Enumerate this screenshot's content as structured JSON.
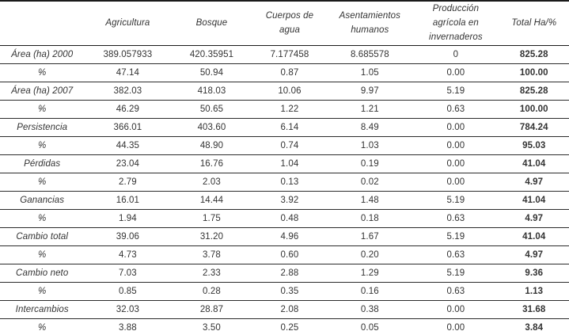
{
  "table": {
    "corner_label": "",
    "columns": [
      "Agricultura",
      "Bosque",
      "Cuerpos de agua",
      "Asentamientos humanos",
      "Producción agrícola en invernaderos",
      "Total Ha/%"
    ],
    "rows": [
      {
        "label": "Área (ha) 2000",
        "values": [
          "389.057933",
          "420.35951",
          "7.177458",
          "8.685578",
          "0",
          "825.28"
        ]
      },
      {
        "label": "%",
        "values": [
          "47.14",
          "50.94",
          "0.87",
          "1.05",
          "0.00",
          "100.00"
        ]
      },
      {
        "label": "Área (ha) 2007",
        "values": [
          "382.03",
          "418.03",
          "10.06",
          "9.97",
          "5.19",
          "825.28"
        ]
      },
      {
        "label": "%",
        "values": [
          "46.29",
          "50.65",
          "1.22",
          "1.21",
          "0.63",
          "100.00"
        ]
      },
      {
        "label": "Persistencia",
        "values": [
          "366.01",
          "403.60",
          "6.14",
          "8.49",
          "0.00",
          "784.24"
        ]
      },
      {
        "label": "%",
        "values": [
          "44.35",
          "48.90",
          "0.74",
          "1.03",
          "0.00",
          "95.03"
        ]
      },
      {
        "label": "Pérdidas",
        "values": [
          "23.04",
          "16.76",
          "1.04",
          "0.19",
          "0.00",
          "41.04"
        ]
      },
      {
        "label": "%",
        "values": [
          "2.79",
          "2.03",
          "0.13",
          "0.02",
          "0.00",
          "4.97"
        ]
      },
      {
        "label": "Ganancias",
        "values": [
          "16.01",
          "14.44",
          "3.92",
          "1.48",
          "5.19",
          "41.04"
        ]
      },
      {
        "label": "%",
        "values": [
          "1.94",
          "1.75",
          "0.48",
          "0.18",
          "0.63",
          "4.97"
        ]
      },
      {
        "label": "Cambio total",
        "values": [
          "39.06",
          "31.20",
          "4.96",
          "1.67",
          "5.19",
          "41.04"
        ]
      },
      {
        "label": "%",
        "values": [
          "4.73",
          "3.78",
          "0.60",
          "0.20",
          "0.63",
          "4.97"
        ]
      },
      {
        "label": "Cambio neto",
        "values": [
          "7.03",
          "2.33",
          "2.88",
          "1.29",
          "5.19",
          "9.36"
        ]
      },
      {
        "label": "%",
        "values": [
          "0.85",
          "0.28",
          "0.35",
          "0.16",
          "0.63",
          "1.13"
        ]
      },
      {
        "label": "Intercambios",
        "values": [
          "32.03",
          "28.87",
          "2.08",
          "0.38",
          "0.00",
          "31.68"
        ]
      },
      {
        "label": "%",
        "values": [
          "3.88",
          "3.50",
          "0.25",
          "0.05",
          "0.00",
          "3.84"
        ]
      }
    ]
  },
  "chart_data": {
    "type": "table",
    "title": "",
    "categories": [
      "Agricultura",
      "Bosque",
      "Cuerpos de agua",
      "Asentamientos humanos",
      "Producción agrícola en invernaderos",
      "Total Ha/%"
    ],
    "series": [
      {
        "name": "Área (ha) 2000",
        "values": [
          389.057933,
          420.35951,
          7.177458,
          8.685578,
          0,
          825.28
        ]
      },
      {
        "name": "% (2000)",
        "values": [
          47.14,
          50.94,
          0.87,
          1.05,
          0.0,
          100.0
        ]
      },
      {
        "name": "Área (ha) 2007",
        "values": [
          382.03,
          418.03,
          10.06,
          9.97,
          5.19,
          825.28
        ]
      },
      {
        "name": "% (2007)",
        "values": [
          46.29,
          50.65,
          1.22,
          1.21,
          0.63,
          100.0
        ]
      },
      {
        "name": "Persistencia",
        "values": [
          366.01,
          403.6,
          6.14,
          8.49,
          0.0,
          784.24
        ]
      },
      {
        "name": "% (Persistencia)",
        "values": [
          44.35,
          48.9,
          0.74,
          1.03,
          0.0,
          95.03
        ]
      },
      {
        "name": "Pérdidas",
        "values": [
          23.04,
          16.76,
          1.04,
          0.19,
          0.0,
          41.04
        ]
      },
      {
        "name": "% (Pérdidas)",
        "values": [
          2.79,
          2.03,
          0.13,
          0.02,
          0.0,
          4.97
        ]
      },
      {
        "name": "Ganancias",
        "values": [
          16.01,
          14.44,
          3.92,
          1.48,
          5.19,
          41.04
        ]
      },
      {
        "name": "% (Ganancias)",
        "values": [
          1.94,
          1.75,
          0.48,
          0.18,
          0.63,
          4.97
        ]
      },
      {
        "name": "Cambio total",
        "values": [
          39.06,
          31.2,
          4.96,
          1.67,
          5.19,
          41.04
        ]
      },
      {
        "name": "% (Cambio total)",
        "values": [
          4.73,
          3.78,
          0.6,
          0.2,
          0.63,
          4.97
        ]
      },
      {
        "name": "Cambio neto",
        "values": [
          7.03,
          2.33,
          2.88,
          1.29,
          5.19,
          9.36
        ]
      },
      {
        "name": "% (Cambio neto)",
        "values": [
          0.85,
          0.28,
          0.35,
          0.16,
          0.63,
          1.13
        ]
      },
      {
        "name": "Intercambios",
        "values": [
          32.03,
          28.87,
          2.08,
          0.38,
          0.0,
          31.68
        ]
      },
      {
        "name": "% (Intercambios)",
        "values": [
          3.88,
          3.5,
          0.25,
          0.05,
          0.0,
          3.84
        ]
      }
    ]
  },
  "colors": {
    "text": "#333333",
    "rule": "#1a1a1a",
    "background": "#ffffff"
  }
}
